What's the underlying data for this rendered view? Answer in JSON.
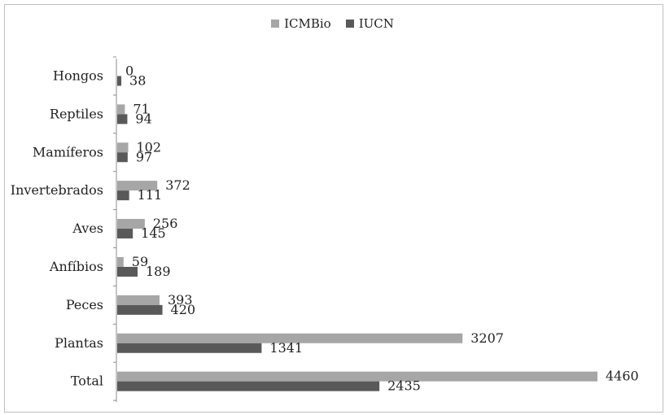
{
  "chart_data": {
    "type": "bar",
    "orientation": "horizontal",
    "categories": [
      "Hongos",
      "Reptiles",
      "Mamíferos",
      "Invertebrados",
      "Aves",
      "Anfíbios",
      "Peces",
      "Plantas",
      "Total"
    ],
    "series": [
      {
        "name": "ICMBio",
        "color": "#a6a6a6",
        "values": [
          0,
          71,
          102,
          372,
          256,
          59,
          393,
          3207,
          4460
        ]
      },
      {
        "name": "IUCN",
        "color": "#595959",
        "values": [
          38,
          94,
          97,
          111,
          145,
          189,
          420,
          1341,
          2435
        ]
      }
    ],
    "xlim": [
      0,
      4460
    ],
    "grid": false,
    "legend_position": "top-center",
    "data_labels": true
  }
}
